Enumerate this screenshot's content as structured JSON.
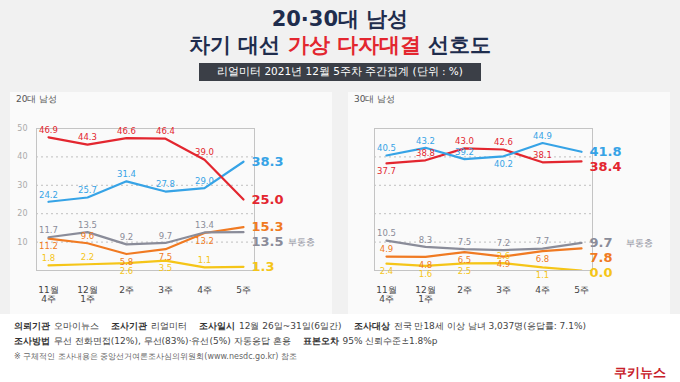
{
  "title_lines": [
    [
      {
        "text": "20·30대 남성"
      }
    ],
    [
      {
        "text": "차기 대선 "
      },
      {
        "text": "가상 다자대결",
        "color": "#e3262f"
      },
      {
        "text": " 선호도"
      }
    ]
  ],
  "subtitle": "리얼미터 2021년 12월 5주차 주간집계 (단위 : %)",
  "chart_data": [
    {
      "type": "line",
      "title": "20대 남성",
      "categories": [
        "11월 4주",
        "12월 1주",
        "2주",
        "3주",
        "4주",
        "5주"
      ],
      "ylim": [
        0,
        50
      ],
      "yticks": [
        10,
        20,
        30,
        40,
        50
      ],
      "grid": true,
      "data_labels": true,
      "series": [
        {
          "color": "#f5c518",
          "values": [
            1.8,
            2.2,
            2.6,
            3.5,
            1.1,
            1.3
          ],
          "value_labels": [
            "1.8",
            "2.2",
            "2.6",
            "3.5",
            "1.1",
            "1.3"
          ]
        },
        {
          "color": "#f07a22",
          "values": [
            11.2,
            9.6,
            5.8,
            7.5,
            13.2,
            15.3
          ],
          "value_labels": [
            "11.2",
            "9.6",
            "5.8",
            "7.5",
            "13.2",
            "15.3"
          ]
        },
        {
          "name": "부동층",
          "color": "#8a8c99",
          "values": [
            11.7,
            13.5,
            9.2,
            9.7,
            13.4,
            13.5
          ],
          "value_labels": [
            "11.7",
            "13.5",
            "9.2",
            "9.7",
            "13.4",
            "13.5"
          ]
        },
        {
          "color": "#36a3e6",
          "values": [
            24.2,
            25.7,
            31.4,
            27.8,
            29.0,
            38.3
          ],
          "value_labels": [
            "24.2",
            "25.7",
            "31.4",
            "27.8",
            "29.0",
            "38.3"
          ]
        },
        {
          "color": "#e3262f",
          "values": [
            46.9,
            44.3,
            46.6,
            46.4,
            39.0,
            25.0
          ],
          "value_labels": [
            "46.9",
            "44.3",
            "46.6",
            "46.4",
            "39.0",
            "25.0"
          ]
        }
      ]
    },
    {
      "type": "line",
      "title": "30대 남성",
      "categories": [
        "11월 4주",
        "12월 1주",
        "2주",
        "3주",
        "4주",
        "5주"
      ],
      "ylim": [
        0,
        50
      ],
      "yticks": [
        10,
        20,
        30,
        40,
        50
      ],
      "grid": true,
      "data_labels": true,
      "tick_labels": "x",
      "series": [
        {
          "color": "#f5c518",
          "values": [
            2.4,
            1.6,
            2.5,
            2.6,
            1.1,
            0.0
          ],
          "value_labels": [
            "2.4",
            "1.6",
            "2.5",
            "2.6",
            "1.1",
            "0.0"
          ]
        },
        {
          "color": "#f07a22",
          "values": [
            4.9,
            4.8,
            6.5,
            4.9,
            6.8,
            7.8
          ],
          "value_labels": [
            "4.9",
            "4.8",
            "6.5",
            "4.9",
            "6.8",
            "7.8"
          ]
        },
        {
          "name": "부동층",
          "color": "#8a8c99",
          "values": [
            10.5,
            8.3,
            7.5,
            7.2,
            7.7,
            9.7
          ],
          "value_labels": [
            "10.5",
            "8.3",
            "7.5",
            "7.2",
            "7.7",
            "9.7"
          ]
        },
        {
          "color": "#e3262f",
          "values": [
            37.7,
            38.8,
            43.0,
            42.6,
            38.1,
            38.4
          ],
          "value_labels": [
            "37.7",
            "38.8",
            "43.0",
            "42.6",
            "38.1",
            "38.4"
          ]
        },
        {
          "color": "#36a3e6",
          "values": [
            40.5,
            43.2,
            39.2,
            40.2,
            44.9,
            41.8
          ],
          "value_labels": [
            "40.5",
            "43.2",
            "39.2",
            "40.2",
            "44.9",
            "41.8"
          ]
        }
      ]
    }
  ],
  "footer": {
    "rows": [
      [
        [
          "의뢰기관",
          "오마이뉴스"
        ],
        [
          "조사기관",
          "리얼미터"
        ],
        [
          "조사일시",
          "12월 26일~31일(6일간)"
        ],
        [
          "조사대상",
          "전국 만18세 이상 남녀 3,037명(응답률: 7.1%)"
        ]
      ],
      [
        [
          "조사방법",
          "무선 전화면접(12%), 무선(83%)·유선(5%) 자동응답 혼용"
        ],
        [
          "표본오차",
          "95% 신뢰수준±1.8%p"
        ]
      ]
    ],
    "note": "※ 구체적인 조사내용은 중앙선거여론조사심의위원회(www.nesdc.go.kr) 참조",
    "source": "쿠키뉴스"
  }
}
